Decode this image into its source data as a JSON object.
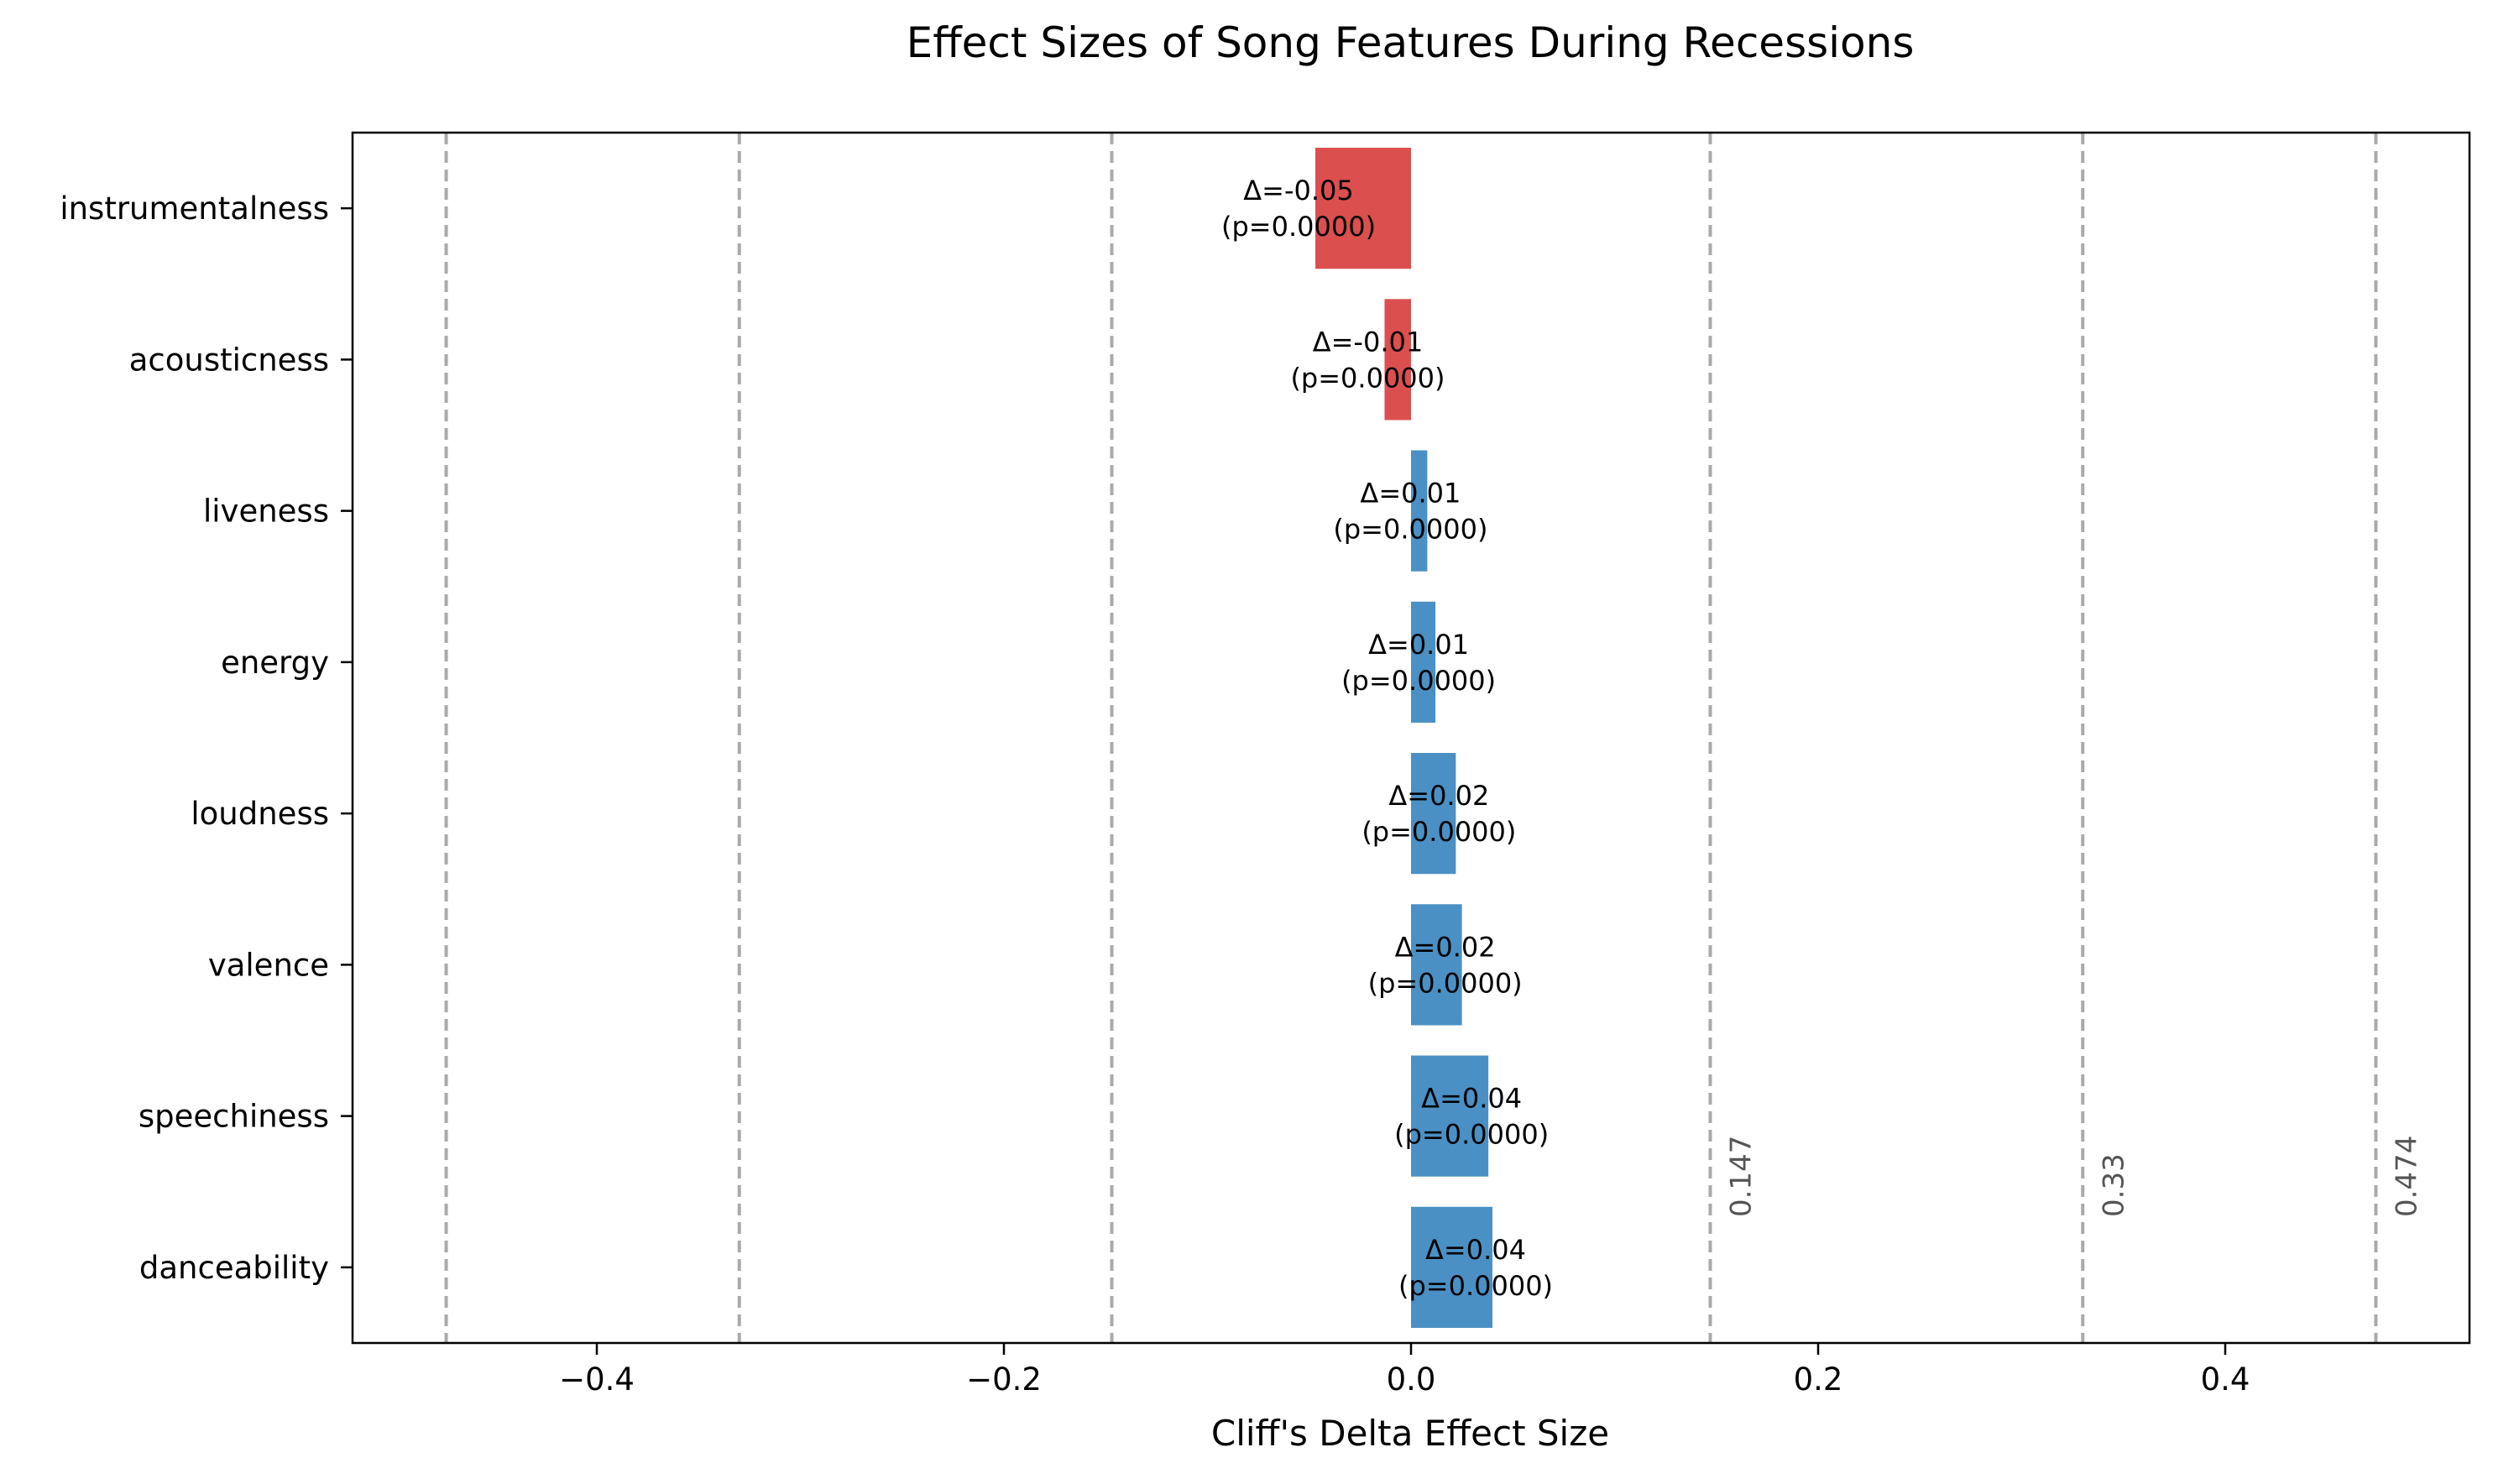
{
  "chart_data": {
    "type": "bar",
    "orientation": "horizontal",
    "title": "Effect Sizes of Song Features During Recessions",
    "xlabel": "Cliff's Delta Effect Size",
    "ylabel": "",
    "xlim": [
      -0.52,
      0.52
    ],
    "xticks": [
      -0.4,
      -0.2,
      0.0,
      0.2,
      0.4
    ],
    "xtick_labels": [
      "−0.4",
      "−0.2",
      "0.0",
      "0.2",
      "0.4"
    ],
    "grid": false,
    "categories": [
      "instrumentalness",
      "acousticness",
      "liveness",
      "energy",
      "loudness",
      "valence",
      "speechiness",
      "danceability"
    ],
    "values": [
      -0.047,
      -0.013,
      0.008,
      0.012,
      0.022,
      0.025,
      0.038,
      0.04
    ],
    "bar_labels": [
      {
        "delta": "Δ=-0.05",
        "p": "(p=0.0000)"
      },
      {
        "delta": "Δ=-0.01",
        "p": "(p=0.0000)"
      },
      {
        "delta": "Δ=0.01",
        "p": "(p=0.0000)"
      },
      {
        "delta": "Δ=0.01",
        "p": "(p=0.0000)"
      },
      {
        "delta": "Δ=0.02",
        "p": "(p=0.0000)"
      },
      {
        "delta": "Δ=0.02",
        "p": "(p=0.0000)"
      },
      {
        "delta": "Δ=0.04",
        "p": "(p=0.0000)"
      },
      {
        "delta": "Δ=0.04",
        "p": "(p=0.0000)"
      }
    ],
    "reference_lines": {
      "values": [
        -0.474,
        -0.33,
        -0.147,
        0.147,
        0.33,
        0.474
      ],
      "labels": [
        "",
        "",
        "",
        "0.147",
        "0.33",
        "0.474"
      ],
      "style": "dashed",
      "color": "#aaaaaa"
    },
    "colors": {
      "positive": "#4a90c4",
      "negative": "#dc4f4f",
      "ref_line": "#aaaaaa",
      "ref_label": "#555555",
      "axis": "#000000",
      "text": "#000000"
    }
  }
}
